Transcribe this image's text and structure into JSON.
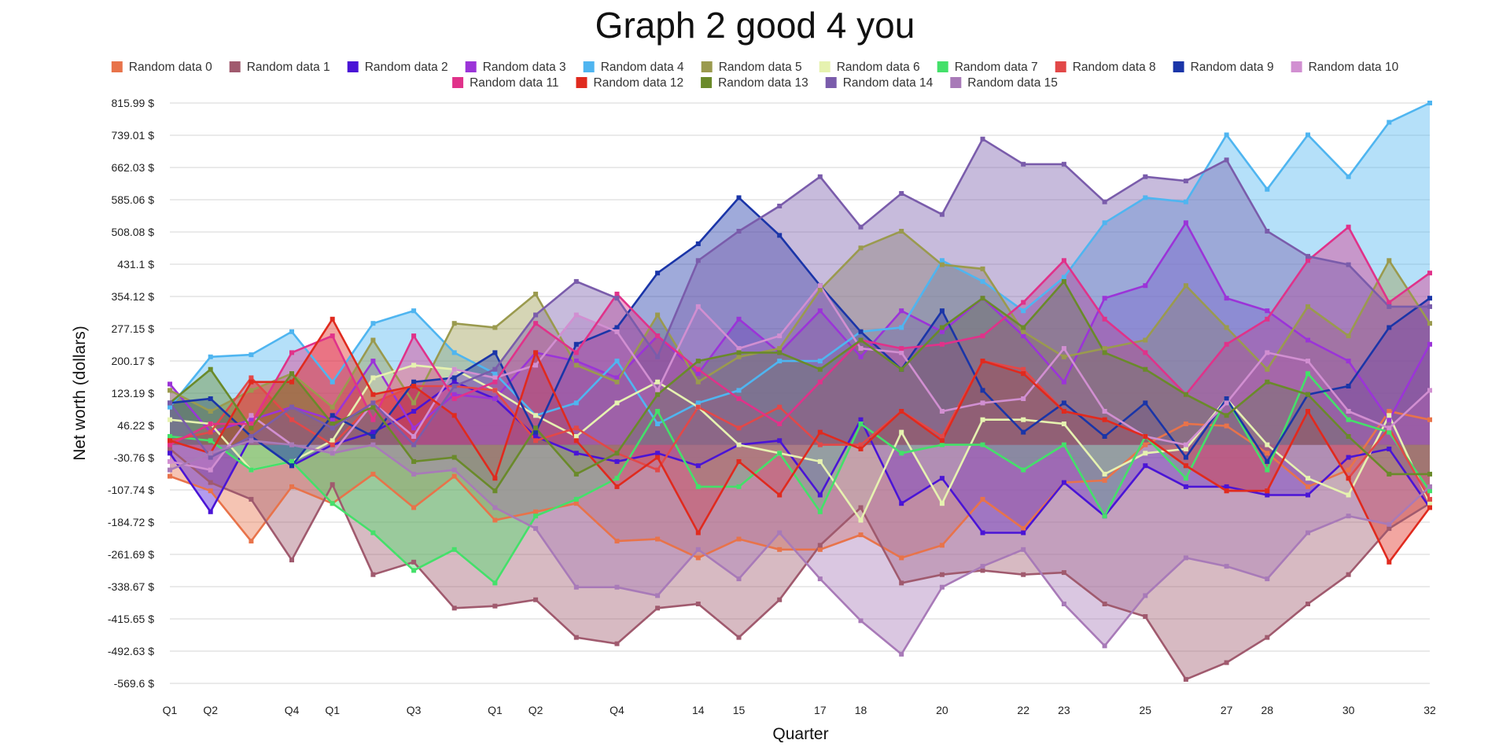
{
  "chart_data": {
    "type": "area",
    "title": "Graph 2 good 4 you",
    "xlabel": "Quarter",
    "ylabel": "Net worth (dollars)",
    "ylim": [
      -569.6,
      815.99
    ],
    "grid": true,
    "legend_position": "top",
    "y_tick_labels": [
      "815.99 $",
      "739.01 $",
      "662.03 $",
      "585.06 $",
      "508.08 $",
      "431.1 $",
      "354.12 $",
      "277.15 $",
      "200.17 $",
      "123.19 $",
      "46.22 $",
      "-30.76 $",
      "-107.74 $",
      "-184.72 $",
      "-261.69 $",
      "-338.67 $",
      "-415.65 $",
      "-492.63 $",
      "-569.6 $"
    ],
    "x": [
      1,
      2,
      3,
      4,
      5,
      6,
      7,
      8,
      9,
      10,
      11,
      12,
      13,
      14,
      15,
      16,
      17,
      18,
      19,
      20,
      21,
      22,
      23,
      24,
      25,
      26,
      27,
      28,
      29,
      30,
      31,
      32
    ],
    "x_tick_labels": [
      {
        "x": 1,
        "label": "Q1"
      },
      {
        "x": 2,
        "label": "Q2"
      },
      {
        "x": 4,
        "label": "Q4"
      },
      {
        "x": 5,
        "label": "Q1"
      },
      {
        "x": 7,
        "label": "Q3"
      },
      {
        "x": 9,
        "label": "Q1"
      },
      {
        "x": 10,
        "label": "Q2"
      },
      {
        "x": 12,
        "label": "Q4"
      },
      {
        "x": 14,
        "label": "14"
      },
      {
        "x": 15,
        "label": "15"
      },
      {
        "x": 17,
        "label": "17"
      },
      {
        "x": 18,
        "label": "18"
      },
      {
        "x": 20,
        "label": "20"
      },
      {
        "x": 22,
        "label": "22"
      },
      {
        "x": 23,
        "label": "23"
      },
      {
        "x": 25,
        "label": "25"
      },
      {
        "x": 27,
        "label": "27"
      },
      {
        "x": 28,
        "label": "28"
      },
      {
        "x": 30,
        "label": "30"
      },
      {
        "x": 32,
        "label": "32"
      }
    ],
    "series": [
      {
        "name": "Random data 0",
        "color": "#e8734a",
        "values": [
          -75,
          -110,
          -230,
          -100,
          -140,
          -70,
          -150,
          -75,
          -180,
          -160,
          -140,
          -230,
          -225,
          -270,
          -225,
          -250,
          -250,
          -215,
          -270,
          -240,
          -130,
          -200,
          -90,
          -85,
          0,
          50,
          45,
          -20,
          -100,
          -60,
          80,
          60
        ]
      },
      {
        "name": "Random data 1",
        "color": "#a05a6e",
        "values": [
          -10,
          -90,
          -130,
          -275,
          -95,
          -310,
          -280,
          -390,
          -385,
          -370,
          -460,
          -475,
          -390,
          -380,
          -460,
          -370,
          -240,
          -150,
          -330,
          -310,
          -300,
          -310,
          -305,
          -380,
          -410,
          -560,
          -520,
          -460,
          -380,
          -310,
          -200,
          -140
        ]
      },
      {
        "name": "Random data 2",
        "color": "#4a14d6",
        "values": [
          -20,
          -160,
          20,
          -50,
          0,
          30,
          80,
          150,
          110,
          20,
          -20,
          -40,
          -20,
          -50,
          0,
          10,
          -120,
          60,
          -140,
          -80,
          -210,
          -210,
          -90,
          -170,
          -50,
          -100,
          -100,
          -120,
          -120,
          -30,
          -10,
          -150
        ]
      },
      {
        "name": "Random data 3",
        "color": "#9b34d8",
        "values": [
          145,
          30,
          60,
          90,
          60,
          200,
          40,
          120,
          110,
          220,
          200,
          160,
          260,
          170,
          300,
          220,
          320,
          210,
          320,
          270,
          350,
          260,
          150,
          350,
          380,
          530,
          350,
          320,
          250,
          200,
          60,
          240
        ]
      },
      {
        "name": "Random data 4",
        "color": "#4fb5f0",
        "values": [
          90,
          210,
          215,
          270,
          150,
          290,
          320,
          220,
          170,
          70,
          100,
          200,
          50,
          100,
          130,
          200,
          200,
          270,
          280,
          440,
          390,
          320,
          400,
          530,
          590,
          580,
          740,
          610,
          740,
          640,
          770,
          816
        ]
      },
      {
        "name": "Random data 5",
        "color": "#9a9a4e",
        "values": [
          130,
          80,
          130,
          170,
          90,
          250,
          100,
          290,
          280,
          360,
          190,
          150,
          310,
          150,
          210,
          230,
          370,
          470,
          510,
          430,
          420,
          270,
          210,
          230,
          250,
          380,
          280,
          180,
          330,
          260,
          440,
          290
        ]
      },
      {
        "name": "Random data 6",
        "color": "#e6f2b0",
        "values": [
          60,
          50,
          -60,
          -40,
          10,
          160,
          190,
          180,
          130,
          70,
          20,
          100,
          150,
          90,
          0,
          -20,
          -40,
          -180,
          30,
          -140,
          60,
          60,
          50,
          -70,
          -20,
          -10,
          110,
          0,
          -80,
          -120,
          70,
          -140
        ]
      },
      {
        "name": "Random data 7",
        "color": "#44e06a",
        "values": [
          20,
          10,
          -60,
          -40,
          -140,
          -210,
          -300,
          -250,
          -330,
          -170,
          -130,
          -80,
          80,
          -100,
          -100,
          -20,
          -160,
          50,
          -20,
          0,
          0,
          -60,
          0,
          -170,
          20,
          -80,
          110,
          -60,
          170,
          60,
          30,
          -110
        ]
      },
      {
        "name": "Random data 8",
        "color": "#e24848",
        "values": [
          10,
          30,
          160,
          60,
          0,
          100,
          140,
          140,
          130,
          10,
          40,
          -20,
          -60,
          90,
          40,
          90,
          0,
          0,
          80,
          20,
          200,
          180,
          80,
          60,
          20,
          -50,
          -110,
          -110,
          80,
          -80,
          40,
          -130
        ]
      },
      {
        "name": "Random data 9",
        "color": "#1a35a8",
        "values": [
          100,
          110,
          20,
          -50,
          70,
          20,
          150,
          160,
          220,
          30,
          240,
          280,
          410,
          480,
          590,
          500,
          380,
          270,
          180,
          320,
          130,
          30,
          100,
          20,
          100,
          -30,
          110,
          -40,
          120,
          140,
          280,
          350
        ]
      },
      {
        "name": "Random data 10",
        "color": "#d18fd1",
        "values": [
          -40,
          -60,
          70,
          0,
          -20,
          100,
          20,
          180,
          160,
          190,
          310,
          270,
          130,
          330,
          230,
          260,
          380,
          230,
          220,
          80,
          100,
          110,
          230,
          80,
          20,
          0,
          100,
          220,
          200,
          80,
          40,
          130
        ]
      },
      {
        "name": "Random data 11",
        "color": "#e0328a",
        "values": [
          0,
          50,
          50,
          220,
          260,
          60,
          260,
          110,
          150,
          290,
          220,
          360,
          260,
          180,
          110,
          50,
          150,
          250,
          230,
          240,
          260,
          340,
          440,
          300,
          220,
          120,
          240,
          300,
          440,
          520,
          340,
          410
        ]
      },
      {
        "name": "Random data 12",
        "color": "#e02a1e",
        "values": [
          10,
          -20,
          150,
          150,
          300,
          120,
          140,
          70,
          -80,
          220,
          10,
          -100,
          -30,
          -210,
          -40,
          -120,
          30,
          -10,
          80,
          10,
          200,
          170,
          80,
          60,
          20,
          -50,
          -110,
          -110,
          80,
          -80,
          -280,
          -150
        ]
      },
      {
        "name": "Random data 13",
        "color": "#6a8a2a",
        "values": [
          100,
          180,
          40,
          170,
          50,
          90,
          -40,
          -30,
          -110,
          40,
          -70,
          -20,
          120,
          200,
          220,
          220,
          180,
          250,
          180,
          280,
          350,
          280,
          390,
          220,
          180,
          120,
          70,
          150,
          120,
          20,
          -70,
          -70
        ]
      },
      {
        "name": "Random data 14",
        "color": "#7a5cab",
        "values": [
          100,
          -30,
          20,
          90,
          40,
          100,
          0,
          140,
          180,
          310,
          390,
          350,
          210,
          440,
          510,
          570,
          640,
          520,
          600,
          550,
          730,
          670,
          670,
          580,
          640,
          630,
          680,
          510,
          450,
          430,
          330,
          330
        ]
      },
      {
        "name": "Random data 15",
        "color": "#a87ab8",
        "values": [
          -60,
          -20,
          10,
          0,
          -20,
          0,
          -70,
          -60,
          -150,
          -200,
          -340,
          -340,
          -360,
          -250,
          -320,
          -210,
          -320,
          -420,
          -500,
          -340,
          -290,
          -250,
          -380,
          -480,
          -360,
          -270,
          -290,
          -320,
          -210,
          -170,
          -190,
          -100
        ]
      }
    ]
  }
}
